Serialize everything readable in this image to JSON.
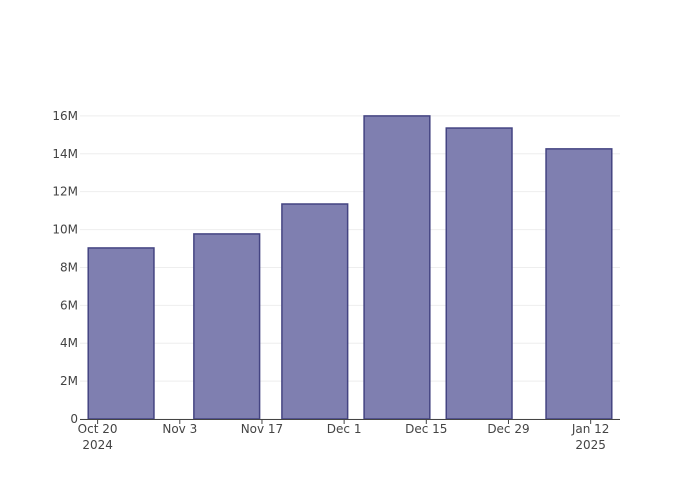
{
  "chart_data": {
    "type": "bar",
    "x": [
      "2024-10-24",
      "2024-11-11",
      "2024-11-26",
      "2024-12-10",
      "2024-12-24",
      "2025-01-10"
    ],
    "values": [
      9030000,
      9770000,
      11350000,
      16000000,
      15360000,
      14260000
    ],
    "color": "#7f7fb0",
    "edge_color": "#444482",
    "xlim": [
      "2024-10-17",
      "2025-01-17"
    ],
    "xticks": [
      {
        "value": "2024-10-20",
        "label": "Oct 20\n2024"
      },
      {
        "value": "2024-11-03",
        "label": "Nov 3"
      },
      {
        "value": "2024-11-17",
        "label": "Nov 17"
      },
      {
        "value": "2024-12-01",
        "label": "Dec 1"
      },
      {
        "value": "2024-12-15",
        "label": "Dec 15"
      },
      {
        "value": "2024-12-29",
        "label": "Dec 29"
      },
      {
        "value": "2025-01-12",
        "label": "Jan 12\n2025"
      }
    ],
    "ylim": [
      0,
      16840000
    ],
    "yticks": [
      0,
      {
        "value": 2000000,
        "label": "2M"
      },
      {
        "value": 4000000,
        "label": "4M"
      },
      {
        "value": 6000000,
        "label": "6M"
      },
      {
        "value": 8000000,
        "label": "8M"
      },
      {
        "value": 10000000,
        "label": "10M"
      },
      {
        "value": 12000000,
        "label": "12M"
      },
      {
        "value": 14000000,
        "label": "14M"
      },
      {
        "value": 16000000,
        "label": "16M"
      }
    ],
    "grid": true
  }
}
